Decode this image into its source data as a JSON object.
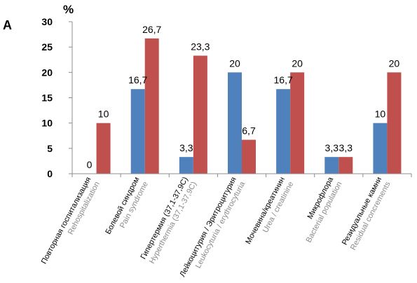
{
  "panel_label": "A",
  "unit_label": "%",
  "colors": {
    "series_1": "#4f81bd",
    "series_2": "#c0504d",
    "axis": "#8c8c8c",
    "grid": "#d9d9d9"
  },
  "chart_data": {
    "type": "bar",
    "title": "",
    "xlabel": "",
    "ylabel": "%",
    "ylim": [
      0,
      30
    ],
    "yticks": [
      "0",
      "5",
      "10",
      "15",
      "20",
      "25",
      "30"
    ],
    "grid": false,
    "legend": "none",
    "categories": [
      {
        "ru": "Повторная госпитализация",
        "en": "Rehospitalization"
      },
      {
        "ru": "Болевой синдром",
        "en": "Pain syndrome"
      },
      {
        "ru": "Гипертермия (37,1-37,9С)",
        "en": "Hyperthermia (37,1-37,9С)"
      },
      {
        "ru": "Лейкоцитурия / Эритроцитурия",
        "en": "Leukocyturia / erythrocyturia"
      },
      {
        "ru": "Мочевина/креатинин",
        "en": "Urea / creatinine"
      },
      {
        "ru": "Микрофлора",
        "en": "Bacterial population"
      },
      {
        "ru": "Резидуальные камни",
        "en": "Residual concrements"
      }
    ],
    "series": [
      {
        "values": [
          0,
          16.7,
          3.3,
          20,
          16.7,
          3.3,
          10
        ],
        "labels": [
          "0",
          "16,7",
          "3,3",
          "20",
          "16,7",
          "3,3",
          "10"
        ]
      },
      {
        "values": [
          10,
          26.7,
          23.3,
          6.7,
          20,
          3.3,
          20
        ],
        "labels": [
          "10",
          "26,7",
          "23,3",
          "6,7",
          "20",
          "3,3",
          "20"
        ]
      }
    ]
  }
}
